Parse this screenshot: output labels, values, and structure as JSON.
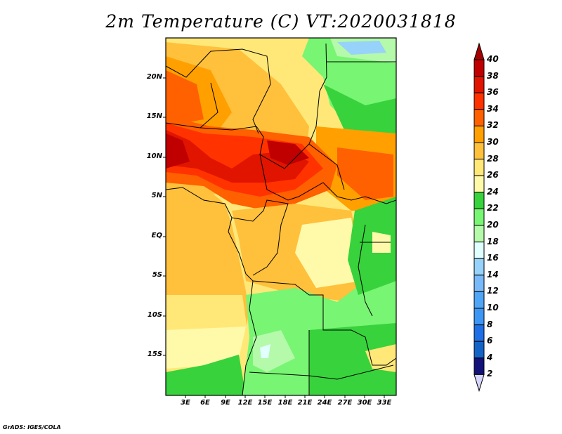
{
  "title": "2m Temperature (C) VT:2020031818",
  "lat_labels": [
    "20N",
    "15N",
    "10N",
    "5N",
    "EQ",
    "5S",
    "10S",
    "15S"
  ],
  "lon_labels": [
    "3E",
    "6E",
    "9E",
    "12E",
    "15E",
    "18E",
    "21E",
    "24E",
    "27E",
    "30E",
    "33E"
  ],
  "colorbar": {
    "labels": [
      "40",
      "38",
      "36",
      "34",
      "32",
      "30",
      "28",
      "26",
      "24",
      "22",
      "20",
      "18",
      "16",
      "14",
      "12",
      "10",
      "8",
      "6",
      "4",
      "2"
    ],
    "colors_top_to_bottom": [
      "#c00000",
      "#e11400",
      "#ff3200",
      "#ff6000",
      "#ffa000",
      "#ffc03c",
      "#ffe878",
      "#fffaaa",
      "#37d23c",
      "#78f573",
      "#b4faaa",
      "#e1ffff",
      "#96d2fa",
      "#78b9fa",
      "#50a5f5",
      "#3c96f5",
      "#1e6ee6",
      "#1464c8",
      "#12127a"
    ],
    "over_color": "#a50000",
    "under_color": "#d6d6ff"
  },
  "footer": "GrADS: IGES/COLA"
}
